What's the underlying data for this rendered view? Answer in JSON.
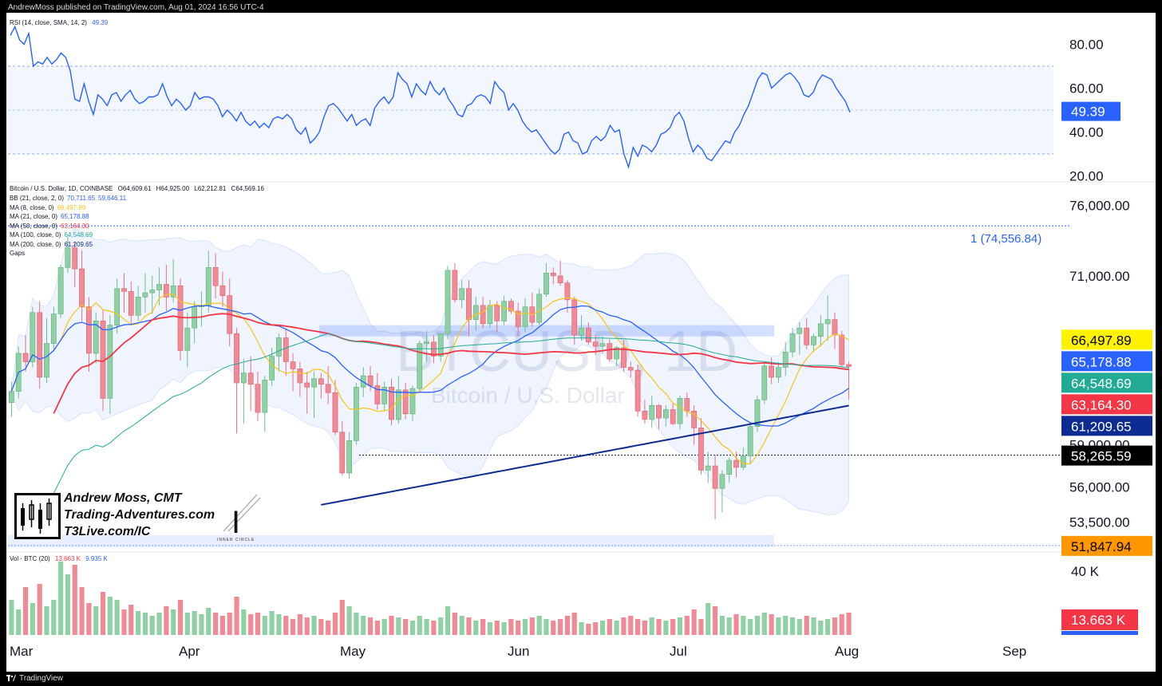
{
  "header": {
    "published": "AndrewMoss published on TradingView.com, Aug 01, 2024 16:56 UTC-4"
  },
  "footer": {
    "brand": "TradingView"
  },
  "colors": {
    "rsi": "#2962ff",
    "bb": "#2962ff",
    "ma8": "#f5c518",
    "ma21": "#2962ff",
    "ma50": "#f23645",
    "ma100": "#22ab94",
    "ma200": "#0d2c91",
    "up": "#8fd1a5",
    "down": "#f28a96",
    "vol_up": "#8fd1a5",
    "vol_down": "#f28a96"
  },
  "chart_data": {
    "type": "candlestick",
    "symbol": "Bitcoin / U.S. Dollar, 1D, COINBASE",
    "ohlc_label": {
      "o": "O64,609.61",
      "h": "H64,925.00",
      "l": "L62,212.81",
      "c": "C64,569.16"
    },
    "legend": [
      {
        "label": "BB (21, close, 2, 0)",
        "values": [
          "70,711.65",
          "59,646.11"
        ],
        "colors": [
          "#2962ff",
          "#2962ff"
        ]
      },
      {
        "label": "MA (8, close, 0)",
        "values": [
          "66,497.89"
        ],
        "colors": [
          "#f5c518"
        ]
      },
      {
        "label": "MA (21, close, 0)",
        "values": [
          "65,178.88"
        ],
        "colors": [
          "#2962ff"
        ]
      },
      {
        "label": "MA (50, close, 0)",
        "values": [
          "63,164.30"
        ],
        "colors": [
          "#f23645"
        ]
      },
      {
        "label": "MA (100, close, 0)",
        "values": [
          "64,548.69"
        ],
        "colors": [
          "#22ab94"
        ]
      },
      {
        "label": "MA (200, close, 0)",
        "values": [
          "61,209.65"
        ],
        "colors": [
          "#0d2c91"
        ]
      },
      {
        "label": "Gaps",
        "values": [],
        "colors": []
      }
    ],
    "price_axis": {
      "ticks": [
        "76,000.00",
        "71,000.00",
        "59,000.00",
        "56,000.00",
        "53,500.00"
      ],
      "ylim": [
        51500,
        77000
      ]
    },
    "price_badges": [
      {
        "label": "66,497.89",
        "value": 66497.89,
        "bg": "#fff200",
        "fg": "#000"
      },
      {
        "label": "65,178.88",
        "value": 65178.88,
        "bg": "#2962ff",
        "fg": "#fff"
      },
      {
        "label": "64,548.69",
        "value": 64548.69,
        "bg": "#22ab94",
        "fg": "#fff"
      },
      {
        "label": "63,164.30",
        "value": 63164.3,
        "bg": "#f23645",
        "fg": "#fff"
      },
      {
        "label": "61,209.65",
        "value": 61209.65,
        "bg": "#0d2c91",
        "fg": "#fff"
      },
      {
        "label": "58,265.59",
        "value": 58265.59,
        "bg": "#000000",
        "fg": "#fff"
      },
      {
        "label": "51,847.94",
        "value": 51847.94,
        "bg": "#ff9800",
        "fg": "#000"
      }
    ],
    "alert_label": "1 (74,556.84)",
    "alert_value": 74556.84,
    "dotted_level": 58265.59,
    "rsi": {
      "label": "RSI (14, close, SMA, 14, 2)",
      "value_text": "49.39",
      "value": 49.39,
      "ticks": [
        "80.00",
        "60.00",
        "40.00",
        "20.00"
      ],
      "band": [
        30,
        70
      ],
      "ylim": [
        18,
        90
      ],
      "series": [
        84,
        88,
        82,
        80,
        85,
        70,
        72,
        71,
        74,
        71,
        73,
        76,
        74,
        68,
        55,
        54,
        62,
        54,
        48,
        57,
        55,
        52,
        57,
        58,
        54,
        57,
        59,
        55,
        53,
        54,
        56,
        56,
        57,
        62,
        56,
        52,
        55,
        53,
        50,
        52,
        58,
        55,
        56,
        56,
        55,
        52,
        47,
        50,
        48,
        45,
        49,
        45,
        43,
        45,
        42,
        44,
        42,
        46,
        47,
        46,
        48,
        46,
        41,
        39,
        42,
        35,
        37,
        40,
        47,
        52,
        53,
        51,
        48,
        45,
        48,
        43,
        45,
        46,
        43,
        51,
        54,
        56,
        53,
        56,
        67,
        64,
        62,
        56,
        62,
        59,
        57,
        63,
        59,
        57,
        60,
        55,
        52,
        48,
        47,
        52,
        53,
        56,
        57,
        56,
        53,
        63,
        60,
        58,
        50,
        53,
        50,
        45,
        42,
        40,
        41,
        38,
        35,
        32,
        30,
        32,
        39,
        40,
        36,
        35,
        30,
        31,
        36,
        38,
        36,
        38,
        43,
        40,
        41,
        30,
        24,
        33,
        29,
        34,
        33,
        31,
        34,
        39,
        40,
        42,
        47,
        49,
        45,
        37,
        31,
        34,
        32,
        28,
        27,
        30,
        33,
        36,
        35,
        40,
        43,
        48,
        52,
        58,
        64,
        67,
        66,
        60,
        62,
        64,
        66,
        67,
        65,
        62,
        57,
        56,
        58,
        63,
        66,
        65,
        64,
        60,
        57,
        54,
        49
      ]
    },
    "candles_note": "daily candles Mar–Aug 2024",
    "candles": [
      [
        62000,
        63500,
        61000,
        62800
      ],
      [
        62800,
        66000,
        62300,
        65500
      ],
      [
        65500,
        66800,
        64200,
        64900
      ],
      [
        64900,
        68800,
        64500,
        68400
      ],
      [
        68400,
        69200,
        63000,
        63800
      ],
      [
        63800,
        68000,
        63400,
        66200
      ],
      [
        66200,
        68800,
        65800,
        68300
      ],
      [
        68300,
        71800,
        68000,
        71600
      ],
      [
        71600,
        73800,
        71200,
        73000
      ],
      [
        73000,
        73400,
        70200,
        71500
      ],
      [
        71500,
        72800,
        67800,
        68800
      ],
      [
        68800,
        69500,
        64200,
        65500
      ],
      [
        65500,
        68400,
        64800,
        67800
      ],
      [
        67800,
        68600,
        61400,
        62300
      ],
      [
        62300,
        68200,
        61200,
        67500
      ],
      [
        67500,
        70800,
        66900,
        70100
      ],
      [
        70100,
        71200,
        68400,
        69900
      ],
      [
        69900,
        70600,
        67600,
        68200
      ],
      [
        68200,
        70300,
        67800,
        69500
      ],
      [
        69500,
        71200,
        68400,
        69800
      ],
      [
        69800,
        71000,
        68300,
        70000
      ],
      [
        70000,
        71600,
        68900,
        70400
      ],
      [
        70400,
        71800,
        68500,
        69500
      ],
      [
        69500,
        72200,
        69100,
        70300
      ],
      [
        70300,
        70800,
        65000,
        65700
      ],
      [
        65700,
        68400,
        64500,
        67300
      ],
      [
        67300,
        69200,
        66200,
        68800
      ],
      [
        68800,
        69900,
        67400,
        68900
      ],
      [
        68900,
        72800,
        68400,
        71600
      ],
      [
        71600,
        72600,
        69400,
        70300
      ],
      [
        70300,
        71300,
        68800,
        69600
      ],
      [
        69600,
        70800,
        66000,
        66900
      ],
      [
        66900,
        67300,
        59800,
        63400
      ],
      [
        63400,
        65100,
        60500,
        64100
      ],
      [
        64100,
        65300,
        61400,
        63300
      ],
      [
        63300,
        64200,
        60700,
        61300
      ],
      [
        61300,
        63900,
        59900,
        63600
      ],
      [
        63600,
        65900,
        63200,
        65300
      ],
      [
        65300,
        66900,
        64200,
        66600
      ],
      [
        66600,
        67200,
        63900,
        64900
      ],
      [
        64900,
        65500,
        62800,
        64400
      ],
      [
        64400,
        64900,
        62400,
        63400
      ],
      [
        63400,
        64200,
        61200,
        63100
      ],
      [
        63100,
        64200,
        60900,
        63700
      ],
      [
        63700,
        64100,
        62300,
        63300
      ],
      [
        63300,
        64600,
        61900,
        62700
      ],
      [
        62700,
        63600,
        59700,
        59900
      ],
      [
        59900,
        60700,
        56800,
        57000
      ],
      [
        57000,
        59900,
        56600,
        59300
      ],
      [
        59300,
        63400,
        59000,
        63100
      ],
      [
        63100,
        64500,
        62400,
        63900
      ],
      [
        63900,
        64600,
        62800,
        63200
      ],
      [
        63200,
        64100,
        61500,
        61900
      ],
      [
        61900,
        63500,
        61400,
        63100
      ],
      [
        63100,
        63700,
        60400,
        60800
      ],
      [
        60800,
        63900,
        60500,
        62900
      ],
      [
        62900,
        63400,
        60800,
        61200
      ],
      [
        61200,
        63200,
        60700,
        63000
      ],
      [
        63000,
        66400,
        62700,
        66200
      ],
      [
        66200,
        67100,
        64900,
        66300
      ],
      [
        66300,
        66800,
        64800,
        65300
      ],
      [
        65300,
        66900,
        64900,
        66900
      ],
      [
        66900,
        71700,
        66500,
        71400
      ],
      [
        71400,
        71900,
        69100,
        69300
      ],
      [
        69300,
        70700,
        68700,
        70100
      ],
      [
        70100,
        70700,
        66700,
        67900
      ],
      [
        67900,
        69500,
        67100,
        68900
      ],
      [
        68900,
        69500,
        67300,
        67600
      ],
      [
        67600,
        69300,
        67300,
        68900
      ],
      [
        68900,
        69200,
        67000,
        67800
      ],
      [
        67800,
        69600,
        67500,
        69200
      ],
      [
        69200,
        69400,
        68300,
        68500
      ],
      [
        68500,
        69100,
        66700,
        67400
      ],
      [
        67400,
        69400,
        67000,
        68800
      ],
      [
        68800,
        69800,
        67400,
        67700
      ],
      [
        67700,
        70100,
        67500,
        69700
      ],
      [
        69700,
        71900,
        69500,
        71200
      ],
      [
        71200,
        71600,
        70400,
        71000
      ],
      [
        71000,
        72100,
        70300,
        70500
      ],
      [
        70500,
        70700,
        68400,
        69300
      ],
      [
        69300,
        69500,
        66100,
        66800
      ],
      [
        66800,
        68200,
        66400,
        67300
      ],
      [
        67300,
        67700,
        66100,
        66300
      ],
      [
        66300,
        66800,
        65400,
        66000
      ],
      [
        66000,
        66700,
        65500,
        66200
      ],
      [
        66200,
        66500,
        64900,
        65100
      ],
      [
        65100,
        66000,
        64600,
        65900
      ],
      [
        65900,
        66400,
        64200,
        64500
      ],
      [
        64500,
        64900,
        63800,
        64300
      ],
      [
        64300,
        64700,
        61000,
        61400
      ],
      [
        61400,
        62200,
        60500,
        60800
      ],
      [
        60800,
        62500,
        60200,
        61800
      ],
      [
        61800,
        61900,
        60100,
        60900
      ],
      [
        60900,
        61800,
        60300,
        61500
      ],
      [
        61500,
        61900,
        60400,
        60500
      ],
      [
        60500,
        62500,
        60100,
        62300
      ],
      [
        62300,
        62700,
        61000,
        61400
      ],
      [
        61400,
        61800,
        59000,
        60200
      ],
      [
        60200,
        60900,
        56900,
        57200
      ],
      [
        57200,
        58500,
        56300,
        57500
      ],
      [
        57500,
        58300,
        53700,
        55900
      ],
      [
        55900,
        57200,
        54200,
        56900
      ],
      [
        56900,
        58100,
        56300,
        57900
      ],
      [
        57900,
        58500,
        56700,
        57400
      ],
      [
        57400,
        58800,
        57200,
        58200
      ],
      [
        58200,
        60600,
        57600,
        60300
      ],
      [
        60300,
        62500,
        59900,
        62200
      ],
      [
        62200,
        64800,
        61900,
        64600
      ],
      [
        64600,
        65200,
        63300,
        63800
      ],
      [
        63800,
        64900,
        63400,
        64500
      ],
      [
        64500,
        66300,
        63900,
        65600
      ],
      [
        65600,
        67300,
        65200,
        66900
      ],
      [
        66900,
        67700,
        65400,
        67300
      ],
      [
        67300,
        68000,
        65800,
        66100
      ],
      [
        66100,
        66900,
        65600,
        66700
      ],
      [
        66700,
        68200,
        66000,
        67600
      ],
      [
        67600,
        69600,
        66400,
        67900
      ],
      [
        67900,
        68400,
        65800,
        66800
      ],
      [
        66800,
        67100,
        64500,
        64700
      ],
      [
        64700,
        64925,
        62212,
        64569
      ]
    ],
    "x_axis": {
      "ticks": [
        "Mar",
        "Apr",
        "May",
        "Jun",
        "Jul",
        "Aug",
        "Sep"
      ]
    },
    "volume": {
      "label": "Vol · BTC (20)",
      "values": [
        "13.663 K",
        "9.935 K"
      ],
      "tick": "40 K",
      "badge": "13.663 K",
      "ylim": [
        0,
        48
      ],
      "series": [
        22,
        16,
        30,
        20,
        32,
        18,
        22,
        46,
        38,
        44,
        30,
        20,
        18,
        27,
        24,
        22,
        16,
        19,
        15,
        14,
        12,
        14,
        18,
        16,
        22,
        14,
        15,
        13,
        17,
        14,
        12,
        14,
        24,
        16,
        13,
        14,
        12,
        15,
        13,
        12,
        10,
        13,
        11,
        12,
        10,
        9,
        14,
        22,
        18,
        14,
        12,
        11,
        9,
        10,
        12,
        11,
        10,
        9,
        12,
        10,
        9,
        11,
        18,
        14,
        12,
        11,
        9,
        10,
        8,
        9,
        8,
        10,
        9,
        10,
        11,
        12,
        10,
        9,
        10,
        12,
        14,
        8,
        7,
        8,
        9,
        10,
        9,
        11,
        12,
        10,
        9,
        11,
        10,
        9,
        10,
        11,
        12,
        16,
        10,
        20,
        18,
        12,
        11,
        13,
        12,
        10,
        12,
        14,
        13,
        11,
        12,
        11,
        10,
        12,
        11,
        9,
        10,
        11,
        13,
        14
      ]
    },
    "watermark": {
      "line1": "BTCUSD, 1D",
      "line2": "Bitcoin / U.S. Dollar"
    },
    "branding": {
      "name": "Andrew Moss, CMT",
      "site": "Trading-Adventures.com",
      "link": "T3Live.com/IC",
      "logo_caption": "INNER CIRCLE"
    }
  }
}
